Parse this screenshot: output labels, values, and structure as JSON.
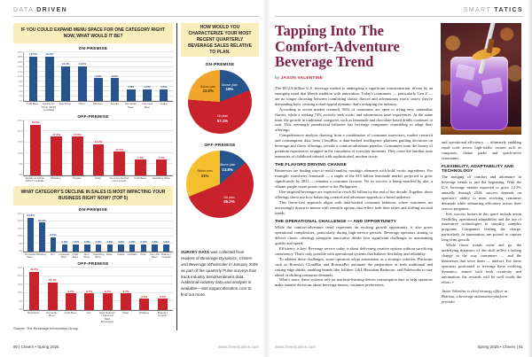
{
  "left_page": {
    "header": {
      "light": "DATA",
      "bold": "DRIVEN"
    },
    "q1": "IF YOU COULD EXPAND MENU SPACE FOR ONE CATEGORY RIGHT NOW, WHAT WOULD IT BE?",
    "q2": "WHAT CATEGORY'S DECLINE IN SALES IS MOST IMPACTING YOUR BUSINESS RIGHT NOW? (TOP 5)",
    "q3": "HOW WOULD YOU CHARACTERIZE YOUR MOST RECENT QUARTERLY BEVERAGE SALES RELATIVE TO PLAN.",
    "source": "Source: The Beverage Information Group",
    "survey": {
      "lead": "SURVEY DATA",
      "mid": " was collected from readers of ",
      "titles": "Beverage Dynamics, Cheers and Beverage Wholesaler",
      "rest": " in January 2025 as part of the quarterly Pulse surveys that track industry trend/sentiment data. Additional industry data and analysis is available—visit epgacceleration.com to find out more."
    },
    "footer_left": "90 | Cheers • Spring 2025",
    "footer_right": "www.cheersonline.com"
  },
  "right_page": {
    "header": {
      "light": "SMART",
      "bold": "TATICS"
    },
    "article": {
      "title": "Tapping Into The Comfort-Adventure Beverage Trend",
      "byline_prefix": "by",
      "byline_name": "JASON VALENTINE",
      "p1": "The $112.8 billion U.S. beverage market is undergoing a significant transformation, driven by an emerging trend that blends tradition with innovation. Today's consumers — particularly Gen Z — are no longer choosing between comforting classic flavors and adventurous exotic tastes; they're demanding both, creating a dual-appeal dynamic that's reshaping the industry.",
      "p2": "According to recent market research, 86% of consumers are open to trying new, unfamiliar flavors, while a striking 74% actively seek exotic and adventurous taste experiences. At the same time, the growth in traditional categories such as lemonade and chocolate-based drinks continues to soar. This seemingly paradoxical behavior has beverage companies scrambling to adapt their offerings.",
      "p3": "Comprehensive analysis drawing from a combination of consumer interviews, market research and consumption data from CloudBar, a data-backed intelligence platform guiding decisions on beverage and flavor offerings, reveals a comfort-adventure paradox. Consumers want the luxury of premium experiences wrapped in the casualness of everyday moments. They crave the familiar taste memories of childhood infused with sophisticated, modern twists.",
      "h_flavors": "THE FLAVORS DRIVING CHANGE",
      "p4": "Businesses are finding ways to meld familiar, nostalgic elements with bold, exotic ingredients. For example, strawberry lemonade — a staple of the $15 billion lemonade market projected to grow significantly by 2032 — remains a consumer favorite. Yet its success is being matched by ube, a vibrant purple sweet potato native to the Philippines.",
      "p5": "Ube-inspired beverages are expected to reach $2 billion by the end of the decade. Together, these offerings showcase how balancing comfort and adventure appeals to a broad audience.",
      "p6": "This flavor-first approach aligns with data-backed consumer behavior, where customers are increasingly drawn to menus with versatile options that reflect both their tastes and shifting societal trends.",
      "h_operational": "THE OPERATIONAL CHALLENGE — AND OPPORTUNITY",
      "p7": "While the comfort-adventure trend represents an exciting growth opportunity, it also poses operational complexities, particularly during high-service periods. Beverage operators aiming to deliver classic offerings alongside innovative drinks face significant challenges in maintaining quality and speed.",
      "p8": "Efficiency is key: Beverage service today is about delivering creative options without sacrificing consistency. That's only possible with operational systems that balance flexibility and reliability.",
      "p9": "To address these challenges, some operators adopt automation as a strategic solution. Platforms such as Botrista's CloudBar and BotristaPro automate the preparation of both traditional and cutting-edge drinks, enabling brands like Jollibee, L&L Hawaiian Barbecue, and Pokéworks to stay ahead of shifting consumer demands.",
      "p10": "What's more, these systems rely on machine-learning-driven consumption data to help operators make smarter decisions about beverage menus, customer preferences,",
      "p11": "and operational efficiency — ultimately enabling rapid scale across high-traffic venues such as campuses, theme parks and quick-serve restaurants.",
      "h_flex": "FLEXIBILITY, ADAPTABILITY AND TECHNOLOGY",
      "p12": "The merging of comfort and adventure in beverage trends is just the beginning. With the U.S. beverage market expected to grow 12.5% annually through 2028, success depends on operators' ability to meet evolving consumer demands while enhancing efficiency across their service programs.",
      "p13": "Key success factors in this space include menu flexibility, operational adaptability and the use of innovative technologies to simplify complex programs. Companies leading the charge, particularly in automation, are poised to capture long-term growth.",
      "p14": "While flavor trends come and go, the underlying dynamics of this shift reflect a lasting change in the way consumers — and the businesses that serve them — interact. For those operators positioned to leverage these evolving dynamics, armed with both creativity and automation, the rewards will be well worth the effort. •",
      "bio": "Jason Valentine is chief strategy officer at Botrista, a beverage automation platform provider."
    },
    "footer_left": "www.cheersonline.com",
    "footer_right": "Spring 2025 • Cheers | 91"
  },
  "colors": {
    "accent_blue": "#27548e",
    "accent_red": "#c8232c",
    "accent_orange": "#f2a52b",
    "accent_yellow": "#f5c02f",
    "highlight_box": "#fbeebe",
    "title_plum": "#7e2149",
    "byline_red": "#c02431"
  },
  "chart_data": [
    {
      "type": "bar",
      "question": "IF YOU COULD EXPAND MENU SPACE FOR ONE CATEGORY RIGHT NOW, WHAT WOULD IT BE?",
      "title": "ON-PREMISE",
      "color": "#27548e",
      "ymax": 20,
      "ystep": 2,
      "grid": true,
      "ylabel": "",
      "xlabel": "",
      "categories": [
        "Craft Beer",
        "Ready-to-Drink (RTD) Cocktails",
        "Red Wine",
        "Other",
        "Whiskey",
        "Tequila",
        "Domestic Beer",
        "Imported Beer",
        "Vodka"
      ],
      "values": [
        19.0,
        19.0,
        14.3,
        14.3,
        9.5,
        9.5,
        4.8,
        4.8,
        4.8
      ]
    },
    {
      "type": "bar",
      "question": "IF YOU COULD EXPAND MENU SPACE FOR ONE CATEGORY RIGHT NOW, WHAT WOULD IT BE?",
      "title": "OFF-PREMISE",
      "color": "#c8232c",
      "ymax": 25,
      "ystep": 5,
      "grid": true,
      "ylabel": "",
      "xlabel": "",
      "categories": [
        "Ready-to-Drink (RTD) Cocktails",
        "Whiskey",
        "Tequila",
        "Other",
        "No-/Low-Alcohol (zero-proof)",
        "Craft Beer",
        "Sparkling Wine"
      ],
      "values": [
        23.5,
        17.6,
        17.6,
        14.2,
        10.7,
        7.1,
        7.1
      ]
    },
    {
      "type": "bar",
      "question": "WHAT CATEGORY'S DECLINE IN SALES IS MOST IMPACTING YOUR BUSINESS RIGHT NOW? (TOP 5)",
      "title": "ON-PREMISE",
      "color": "#27548e",
      "ymax": 25,
      "ystep": 5,
      "grid": true,
      "ylabel": "",
      "xlabel": "",
      "categories": [
        "Domestic Beer",
        "Whiskey",
        "Gin",
        "Imported Beer",
        "Craft Beer",
        "Red Wine",
        "Sparkling Wine",
        "Rosé",
        "Vodka",
        "Cordials",
        "Rum",
        "Non-Alc Beer",
        "Brandy / Cognac"
      ],
      "values": [
        23.8,
        19.0,
        9.5,
        4.8,
        4.8,
        4.8,
        4.8,
        4.8,
        4.8,
        4.8,
        4.8,
        4.8,
        4.8
      ]
    },
    {
      "type": "bar",
      "question": "WHAT CATEGORY'S DECLINE IN SALES IS MOST IMPACTING YOUR BUSINESS RIGHT NOW? (TOP 5)",
      "title": "OFF-PREMISE",
      "color": "#c8232c",
      "ymax": 25,
      "ystep": 5,
      "grid": true,
      "ylabel": "",
      "xlabel": "",
      "categories": [
        "Red Wine",
        "Domestic Beer",
        "Craft Beer",
        "Gin",
        "Hard Seltzers / Flavored Malt Beverages",
        "Other",
        "Whiskey",
        "Brandy / Cognac"
      ],
      "values": [
        22.6,
        16.1,
        9.7,
        9.7,
        9.7,
        9.7,
        6.5,
        6.5
      ]
    },
    {
      "type": "pie",
      "question": "HOW WOULD YOU CHARACTERIZE YOUR MOST RECENT QUARTERLY BEVERAGE SALES RELATIVE TO PLAN.",
      "title": "ON-PREMISE",
      "slices": [
        {
          "label": "Above plan",
          "display": "19%",
          "value": 19.0,
          "color": "#27548e",
          "text_color": "#ffffff"
        },
        {
          "label": "On plan",
          "display": "57.1%",
          "value": 57.1,
          "color": "#c8232c",
          "text_color": "#ffffff"
        },
        {
          "label": "Below plan",
          "display": "23.8%",
          "value": 23.8,
          "color": "#f2a52b",
          "text_color": "#4a3000"
        }
      ]
    },
    {
      "type": "pie",
      "question": "HOW WOULD YOU CHARACTERIZE YOUR MOST RECENT QUARTERLY BEVERAGE SALES RELATIVE TO PLAN.",
      "title": "OFF-PREMISE",
      "slices": [
        {
          "label": "Above plan",
          "display": "13.8%",
          "value": 13.8,
          "color": "#27548e",
          "text_color": "#ffffff"
        },
        {
          "label": "On plan",
          "display": "55.2%",
          "value": 55.2,
          "color": "#c8232c",
          "text_color": "#ffffff"
        },
        {
          "label": "Below plan",
          "display": "31%",
          "value": 31.0,
          "color": "#f5c02f",
          "text_color": "#4a3000"
        }
      ]
    }
  ]
}
